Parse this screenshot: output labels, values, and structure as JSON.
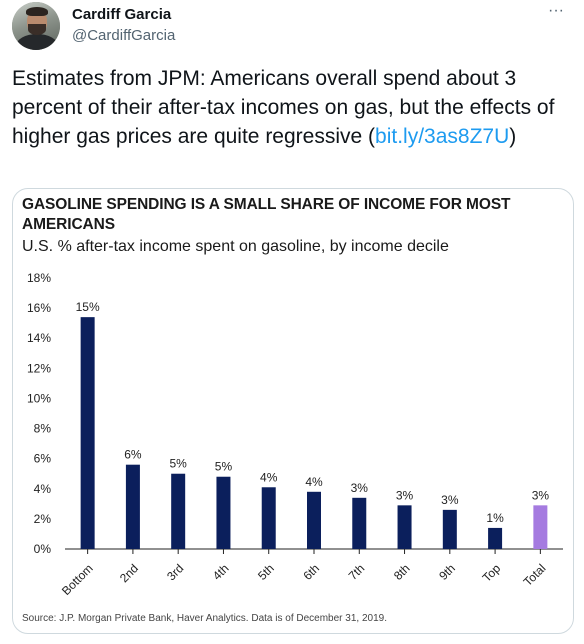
{
  "tweet": {
    "author_name": "Cardiff Garcia",
    "author_handle": "@CardiffGarcia",
    "more_icon": "···",
    "text_before_link": "Estimates from JPM: Americans overall spend about 3 percent of their after-tax incomes on gas, but the effects of higher gas prices are quite regressive (",
    "link_text": "bit.ly/3as8Z7U",
    "text_after_link": ")"
  },
  "chart_data": {
    "type": "bar",
    "title": "GASOLINE SPENDING IS A SMALL SHARE OF INCOME FOR MOST AMERICANS",
    "subtitle": "U.S. % after-tax income spent on gasoline, by income decile",
    "source": "Source: J.P. Morgan Private Bank, Haver Analytics. Data is of December 31, 2019.",
    "categories": [
      "Bottom",
      "2nd",
      "3rd",
      "4th",
      "5th",
      "6th",
      "7th",
      "8th",
      "9th",
      "Top",
      "Total"
    ],
    "values": [
      15.4,
      5.6,
      5.0,
      4.8,
      4.1,
      3.8,
      3.4,
      2.9,
      2.6,
      1.4,
      2.9
    ],
    "data_labels": [
      "15%",
      "6%",
      "5%",
      "5%",
      "4%",
      "4%",
      "3%",
      "3%",
      "3%",
      "1%",
      "3%"
    ],
    "y_ticks": [
      "0%",
      "2%",
      "4%",
      "6%",
      "8%",
      "10%",
      "12%",
      "14%",
      "16%",
      "18%"
    ],
    "ylim": [
      0,
      18
    ],
    "colors": {
      "bar": "#0b1f5c",
      "total_bar": "#a57be0"
    },
    "grid": false
  }
}
